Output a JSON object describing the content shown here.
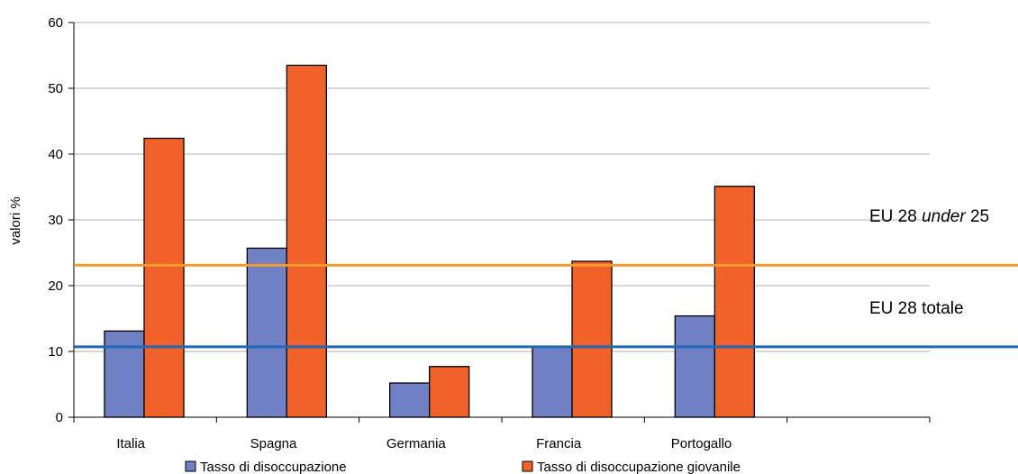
{
  "chart_data": {
    "type": "bar",
    "ylabel": "valori %",
    "ylim": [
      0,
      60
    ],
    "yticks": [
      0,
      10,
      20,
      30,
      40,
      50,
      60
    ],
    "grid": true,
    "categories": [
      "Italia",
      "Spagna",
      "Germania",
      "Francia",
      "Portogallo",
      ""
    ],
    "series": [
      {
        "name": "Tasso di disoccupazione",
        "color": "#7080c4",
        "values": [
          13.1,
          25.7,
          5.2,
          10.8,
          15.4,
          null
        ]
      },
      {
        "name": "Tasso di disoccupazione giovanile",
        "color": "#f0622a",
        "values": [
          42.4,
          53.5,
          7.7,
          23.7,
          35.1,
          null
        ]
      }
    ],
    "reference_lines": [
      {
        "label_parts": [
          {
            "text": "EU 28 ",
            "italic": false
          },
          {
            "text": "under",
            "italic": true
          },
          {
            "text": " 25",
            "italic": false
          }
        ],
        "value": 23.1,
        "color": "#f79a2e"
      },
      {
        "label_parts": [
          {
            "text": "EU 28 totale",
            "italic": false
          }
        ],
        "value": 10.7,
        "color": "#1f6ab5"
      }
    ],
    "legend_position": "bottom"
  }
}
